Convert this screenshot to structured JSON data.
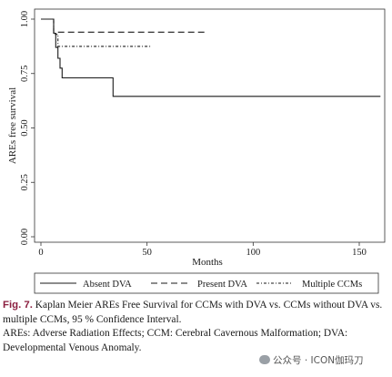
{
  "chart_data": {
    "type": "line",
    "xlabel": "Months",
    "ylabel": "AREs free survival",
    "xlim": [
      -3,
      162
    ],
    "ylim": [
      0,
      1
    ],
    "xticks": [
      0,
      50,
      100,
      150
    ],
    "xtick_labels": [
      "0",
      "50",
      "100",
      "150"
    ],
    "yticks": [
      0,
      0.25,
      0.5,
      0.75,
      1
    ],
    "ytick_labels": [
      "0.00",
      "0.25",
      "0.50",
      "0.75",
      "1.00"
    ],
    "grid": false,
    "legend_position": "bottom",
    "series": [
      {
        "name": "Absent DVA",
        "style": "solid",
        "x": [
          0,
          6,
          6,
          7,
          7,
          8,
          8,
          9,
          9,
          10,
          10,
          34,
          34,
          160
        ],
        "y": [
          1,
          1,
          0.935,
          0.935,
          0.87,
          0.87,
          0.82,
          0.82,
          0.775,
          0.775,
          0.73,
          0.73,
          0.645,
          0.645
        ]
      },
      {
        "name": "Present DVA",
        "style": "dashed",
        "x": [
          0,
          6,
          6,
          78
        ],
        "y": [
          1,
          1,
          0.94,
          0.94
        ]
      },
      {
        "name": "Multiple CCMs",
        "style": "dash-dot",
        "x": [
          0,
          6,
          6,
          8,
          8,
          52
        ],
        "y": [
          1,
          1,
          0.93,
          0.93,
          0.875,
          0.875
        ]
      }
    ]
  },
  "caption": {
    "label": "Fig. 7.",
    "text": "Kaplan Meier AREs Free Survival for CCMs with DVA vs. CCMs without DVA vs. multiple CCMs, 95 % Confidence Interval.",
    "abbrev": "AREs: Adverse Radiation Effects; CCM: Cerebral Cavernous Malformation; DVA: Developmental Venous Anomaly."
  },
  "watermark": {
    "text": "公众号 · ICON伽玛刀"
  }
}
